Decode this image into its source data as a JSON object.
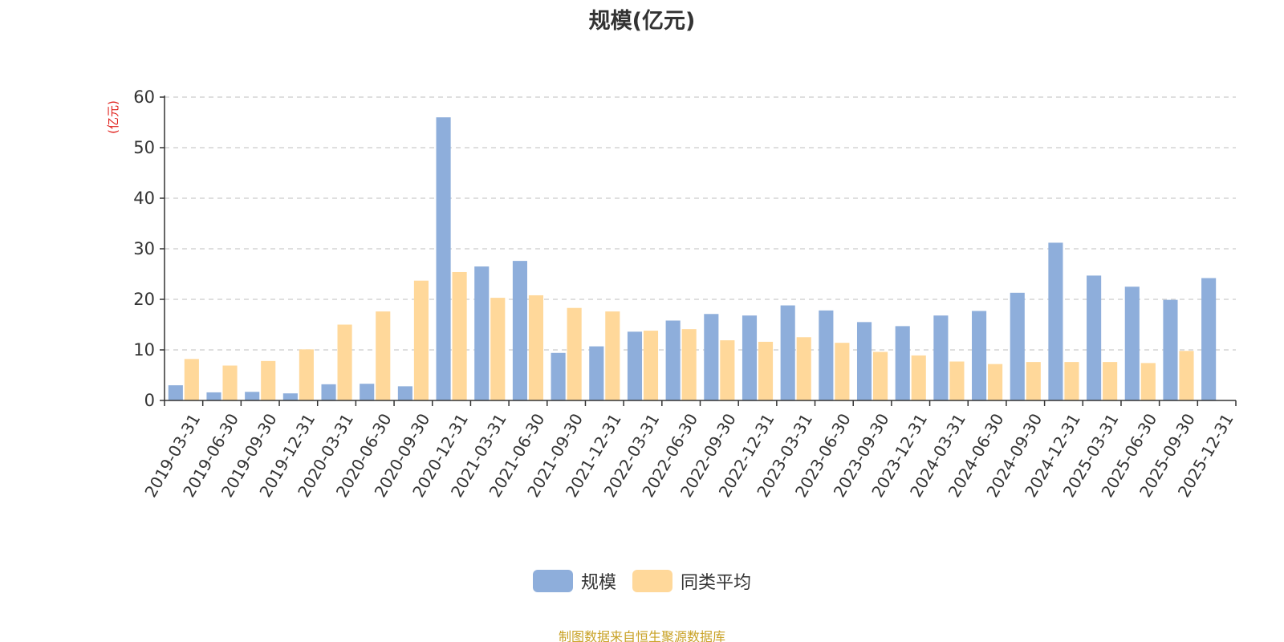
{
  "chart_data": {
    "type": "bar",
    "title": "规模(亿元)",
    "ylabel": "(亿元)",
    "xlabel": "",
    "ylim": [
      0,
      60
    ],
    "yticks": [
      0,
      10,
      20,
      30,
      40,
      50,
      60
    ],
    "grid": true,
    "legend_position": "bottom-center",
    "categories": [
      "2019-03-31",
      "2019-06-30",
      "2019-09-30",
      "2019-12-31",
      "2020-03-31",
      "2020-06-30",
      "2020-09-30",
      "2020-12-31",
      "2021-03-31",
      "2021-06-30",
      "2021-09-30",
      "2021-12-31",
      "2022-03-31",
      "2022-06-30",
      "2022-09-30",
      "2022-12-31",
      "2023-03-31",
      "2023-06-30",
      "2023-09-30",
      "2023-12-31",
      "2024-03-31",
      "2024-06-30",
      "2024-09-30",
      "2024-12-31",
      "2025-03-31",
      "2025-06-30",
      "2025-09-30",
      "2025-12-31"
    ],
    "series": [
      {
        "name": "规模",
        "color": "#8eaedb",
        "values": [
          3.0,
          1.6,
          1.7,
          1.4,
          3.2,
          3.3,
          2.8,
          56.0,
          26.5,
          27.6,
          9.4,
          10.7,
          13.6,
          15.8,
          17.1,
          16.8,
          18.8,
          17.8,
          15.5,
          14.7,
          16.8,
          17.7,
          21.3,
          31.2,
          24.7,
          22.5,
          19.9,
          24.2
        ]
      },
      {
        "name": "同类平均",
        "color": "#ffd89a",
        "values": [
          8.2,
          6.9,
          7.8,
          10.1,
          15.0,
          17.6,
          23.7,
          25.4,
          20.3,
          20.8,
          18.3,
          17.6,
          13.8,
          14.1,
          11.9,
          11.6,
          12.5,
          11.4,
          9.6,
          8.9,
          7.7,
          7.2,
          7.6,
          7.6,
          7.6,
          7.4,
          9.8,
          null
        ]
      }
    ]
  },
  "source_text": "制图数据来自恒生聚源数据库"
}
